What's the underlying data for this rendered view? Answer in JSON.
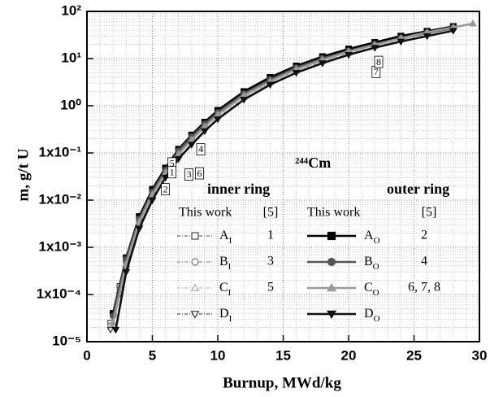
{
  "chart_data": {
    "type": "line",
    "xlabel": "Burnup, MWd/kg",
    "ylabel": "m, g/t U",
    "annotation": "²⁴⁴Cm",
    "xlim": [
      0,
      30
    ],
    "xticks": [
      0,
      5,
      10,
      15,
      20,
      25,
      30
    ],
    "ylim": [
      1e-05,
      100
    ],
    "yticks": [
      {
        "value": 1e-05,
        "label": "10⁻⁵"
      },
      {
        "value": 0.0001,
        "label": "1x10⁻⁴"
      },
      {
        "value": 0.001,
        "label": "1x10⁻³"
      },
      {
        "value": 0.01,
        "label": "1x10⁻²"
      },
      {
        "value": 0.1,
        "label": "1x10⁻¹"
      },
      {
        "value": 1,
        "label": "10⁰"
      },
      {
        "value": 10,
        "label": "10¹"
      },
      {
        "value": 100,
        "label": "10²"
      }
    ],
    "yscale": "log",
    "grid": true,
    "minor_grid": true,
    "legend": {
      "groups": [
        {
          "title": "inner ring",
          "col1": "This work",
          "col2": "[5]"
        },
        {
          "title": "outer ring",
          "col1": "This work",
          "col2": "[5]"
        }
      ]
    },
    "series": [
      {
        "name": "AI",
        "group": 0,
        "ref": "1",
        "color": "#444444",
        "marker": "square",
        "filled": false,
        "line_style": "dashdot",
        "x": [
          1.8,
          2.5,
          3,
          4,
          5,
          6,
          7,
          8,
          9,
          10,
          12,
          14,
          16,
          18,
          20,
          22,
          24,
          26
        ],
        "values": [
          2.5e-05,
          0.00015,
          0.0005,
          0.004,
          0.016,
          0.045,
          0.11,
          0.22,
          0.42,
          0.75,
          1.9,
          3.8,
          6.5,
          10,
          15,
          21,
          28,
          37
        ]
      },
      {
        "name": "BI",
        "group": 0,
        "ref": "3",
        "color": "#777777",
        "marker": "circle",
        "filled": false,
        "line_style": "dashdot",
        "x": [
          1.8,
          2.5,
          3,
          4,
          5,
          6,
          7,
          8,
          9,
          10,
          12,
          14,
          16,
          18,
          20,
          22,
          24,
          26
        ],
        "values": [
          2.2e-05,
          0.00013,
          0.00045,
          0.0036,
          0.014,
          0.04,
          0.1,
          0.2,
          0.38,
          0.68,
          1.7,
          3.4,
          6,
          9.3,
          14,
          20,
          27,
          35
        ]
      },
      {
        "name": "CI",
        "group": 0,
        "ref": "5",
        "color": "#aaaaaa",
        "marker": "triangle",
        "filled": false,
        "line_style": "dashdot",
        "x": [
          1.8,
          2.5,
          3,
          4,
          5,
          6,
          7,
          8,
          9,
          10,
          12,
          14,
          16,
          18,
          20,
          22,
          24,
          26
        ],
        "values": [
          2e-05,
          0.00012,
          0.0004,
          0.0032,
          0.012,
          0.035,
          0.088,
          0.18,
          0.34,
          0.6,
          1.5,
          3.1,
          5.5,
          8.6,
          13,
          18,
          25,
          33
        ]
      },
      {
        "name": "DI",
        "group": 0,
        "color": "#333333",
        "marker": "triangle-down",
        "filled": false,
        "line_style": "dashdot",
        "x": [
          1.8,
          2.5,
          3,
          4,
          5,
          6,
          7,
          8,
          9,
          10,
          12,
          14,
          16,
          18,
          20,
          22,
          24,
          26
        ],
        "values": [
          1.8e-05,
          0.0001,
          0.00035,
          0.0028,
          0.011,
          0.03,
          0.078,
          0.16,
          0.3,
          0.55,
          1.4,
          2.9,
          5.1,
          8,
          12,
          17,
          23,
          31
        ]
      },
      {
        "name": "AO",
        "group": 1,
        "ref": "2",
        "color": "#000000",
        "marker": "square",
        "filled": true,
        "line_style": "solid",
        "x": [
          2,
          3,
          4,
          5,
          6,
          7,
          8,
          9,
          10,
          12,
          14,
          16,
          18,
          20,
          22,
          24,
          26,
          28
        ],
        "values": [
          4e-05,
          0.0006,
          0.0045,
          0.017,
          0.048,
          0.12,
          0.24,
          0.45,
          0.8,
          2,
          4,
          7,
          11,
          16,
          22,
          30,
          38,
          48
        ]
      },
      {
        "name": "BO",
        "group": 1,
        "ref": "4",
        "color": "#555555",
        "marker": "circle",
        "filled": true,
        "line_style": "solid",
        "x": [
          2,
          3,
          4,
          5,
          6,
          7,
          8,
          9,
          10,
          12,
          14,
          16,
          18,
          20,
          22,
          24,
          26,
          28
        ],
        "values": [
          3.5e-05,
          0.00055,
          0.004,
          0.015,
          0.043,
          0.11,
          0.22,
          0.41,
          0.72,
          1.8,
          3.6,
          6.4,
          10,
          14.5,
          20,
          27,
          35,
          44
        ]
      },
      {
        "name": "CO",
        "group": 1,
        "ref": "6, 7, 8",
        "color": "#999999",
        "marker": "triangle",
        "filled": true,
        "line_style": "solid",
        "x": [
          2,
          3,
          4,
          5,
          6,
          7,
          8,
          9,
          10,
          12,
          14,
          16,
          18,
          20,
          22,
          24,
          26,
          28,
          29.5
        ],
        "values": [
          2.5e-05,
          0.00045,
          0.0035,
          0.013,
          0.038,
          0.095,
          0.19,
          0.36,
          0.65,
          1.65,
          3.3,
          5.9,
          9.4,
          14,
          19.5,
          27,
          36,
          46,
          55
        ]
      },
      {
        "name": "DO",
        "group": 1,
        "color": "#111111",
        "marker": "triangle-down",
        "filled": true,
        "line_style": "solid",
        "x": [
          2.2,
          3,
          4,
          5,
          6,
          7,
          8,
          9,
          10,
          12,
          14,
          16,
          18,
          20,
          22,
          24,
          26,
          28
        ],
        "values": [
          1.8e-05,
          0.0003,
          0.0025,
          0.01,
          0.03,
          0.075,
          0.15,
          0.29,
          0.52,
          1.35,
          2.8,
          5,
          8,
          12,
          17,
          23,
          30,
          39
        ]
      }
    ],
    "ref_markers": [
      {
        "label": "5",
        "x": 6.5,
        "y": 0.06
      },
      {
        "label": "1",
        "x": 6.5,
        "y": 0.039
      },
      {
        "label": "2",
        "x": 6.0,
        "y": 0.017
      },
      {
        "label": "3",
        "x": 7.8,
        "y": 0.035
      },
      {
        "label": "6",
        "x": 8.6,
        "y": 0.037
      },
      {
        "label": "4",
        "x": 8.7,
        "y": 0.12
      },
      {
        "label": "7",
        "x": 22.1,
        "y": 5.2
      },
      {
        "label": "8",
        "x": 22.3,
        "y": 8.5
      }
    ]
  }
}
